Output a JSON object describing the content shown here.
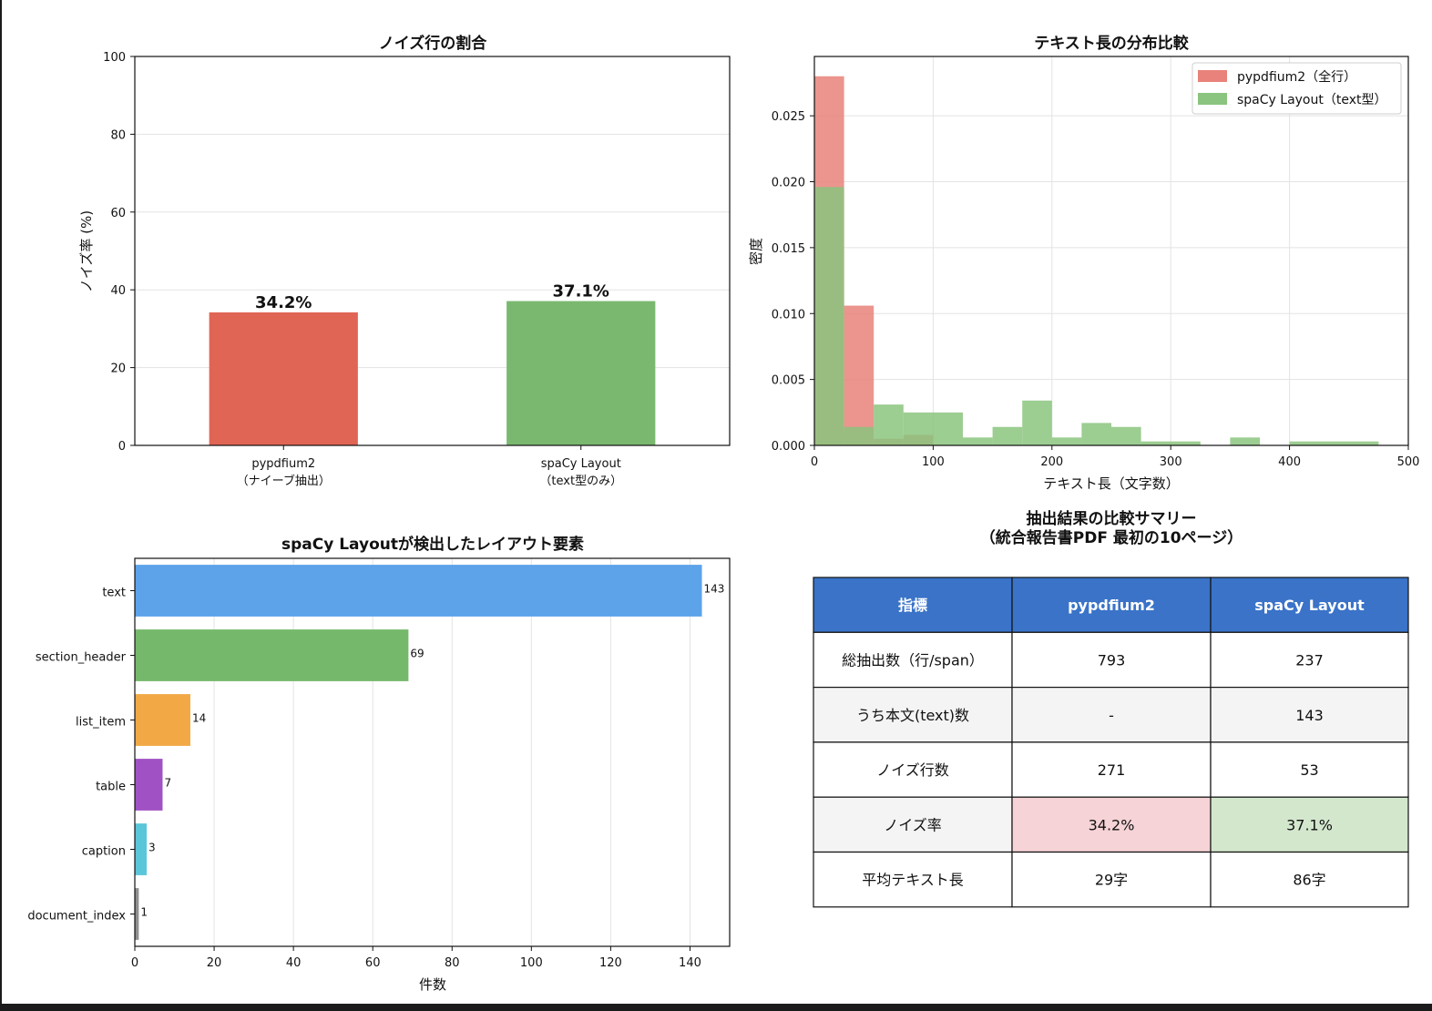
{
  "colors": {
    "pypdfium2": "#e06555",
    "spacy": "#7ab870",
    "hist_red": "#e8827a",
    "hist_green": "#8bc47e",
    "table_header": "#3a73c8",
    "table_red_cell": "#f6d3d6",
    "table_green_cell": "#d3e7cd",
    "table_alt_row": "#f4f4f4"
  },
  "chart_data": [
    {
      "type": "bar",
      "title": "ノイズ行の割合",
      "ylabel": "ノイズ率 (%)",
      "xlabel": "",
      "ylim": [
        0,
        100
      ],
      "yticks": [
        "0",
        "20",
        "40",
        "60",
        "80",
        "100"
      ],
      "categories": [
        {
          "line1": "pypdfium2",
          "line2": "（ナイーブ抽出）"
        },
        {
          "line1": "spaCy Layout",
          "line2": "（text型のみ）"
        }
      ],
      "values": [
        34.2,
        37.1
      ],
      "data_labels": [
        "34.2%",
        "37.1%"
      ],
      "colors": [
        "#e06555",
        "#7ab870"
      ],
      "grid": true
    },
    {
      "type": "area",
      "subtype": "histogram",
      "title": "テキスト長の分布比較",
      "xlabel": "テキスト長（文字数）",
      "ylabel": "密度",
      "xlim": [
        0,
        500
      ],
      "ylim": [
        0,
        0.0295
      ],
      "xticks": [
        "0",
        "100",
        "200",
        "300",
        "400",
        "500"
      ],
      "yticks": [
        "0.000",
        "0.005",
        "0.010",
        "0.015",
        "0.020",
        "0.025"
      ],
      "legend_position": "top-right",
      "grid": true,
      "series": [
        {
          "name": "pypdfium2（全行）",
          "color": "#e8827a",
          "bins": [
            {
              "x0": 0,
              "x1": 25,
              "density": 0.028
            },
            {
              "x0": 25,
              "x1": 50,
              "density": 0.0106
            },
            {
              "x0": 50,
              "x1": 75,
              "density": 0.0005
            },
            {
              "x0": 75,
              "x1": 100,
              "density": 0.0008
            }
          ]
        },
        {
          "name": "spaCy Layout（text型）",
          "color": "#8bc47e",
          "bins": [
            {
              "x0": 0,
              "x1": 25,
              "density": 0.0196
            },
            {
              "x0": 25,
              "x1": 50,
              "density": 0.0014
            },
            {
              "x0": 50,
              "x1": 75,
              "density": 0.0031
            },
            {
              "x0": 75,
              "x1": 125,
              "density": 0.0025
            },
            {
              "x0": 125,
              "x1": 150,
              "density": 0.0006
            },
            {
              "x0": 150,
              "x1": 175,
              "density": 0.0014
            },
            {
              "x0": 175,
              "x1": 200,
              "density": 0.0034
            },
            {
              "x0": 200,
              "x1": 225,
              "density": 0.0006
            },
            {
              "x0": 225,
              "x1": 250,
              "density": 0.0017
            },
            {
              "x0": 250,
              "x1": 275,
              "density": 0.0014
            },
            {
              "x0": 275,
              "x1": 325,
              "density": 0.0003
            },
            {
              "x0": 350,
              "x1": 375,
              "density": 0.0006
            },
            {
              "x0": 400,
              "x1": 475,
              "density": 0.0003
            }
          ]
        }
      ]
    },
    {
      "type": "bar",
      "orientation": "horizontal",
      "title": "spaCy Layoutが検出したレイアウト要素",
      "xlabel": "件数",
      "ylabel": "",
      "xlim": [
        0,
        150
      ],
      "xticks": [
        "0",
        "20",
        "40",
        "60",
        "80",
        "100",
        "120",
        "140"
      ],
      "categories": [
        "text",
        "section_header",
        "list_item",
        "table",
        "caption",
        "document_index"
      ],
      "values": [
        143,
        69,
        14,
        7,
        3,
        1
      ],
      "data_labels": [
        "143",
        "69",
        "14",
        "7",
        "3",
        "1"
      ],
      "colors": [
        "#5ca3ea",
        "#75b86b",
        "#f2a845",
        "#a052c4",
        "#5bc6da",
        "#8f8f8f"
      ],
      "grid": true
    },
    {
      "type": "table",
      "title_line1": "抽出結果の比較サマリー",
      "title_line2": "（統合報告書PDF 最初の10ページ）",
      "columns": [
        "指標",
        "pypdfium2",
        "spaCy Layout"
      ],
      "rows": [
        [
          "総抽出数（行/span）",
          "793",
          "237"
        ],
        [
          "うち本文(text)数",
          "-",
          "143"
        ],
        [
          "ノイズ行数",
          "271",
          "53"
        ],
        [
          "ノイズ率",
          "34.2%",
          "37.1%"
        ],
        [
          "平均テキスト長",
          "29字",
          "86字"
        ]
      ]
    }
  ]
}
